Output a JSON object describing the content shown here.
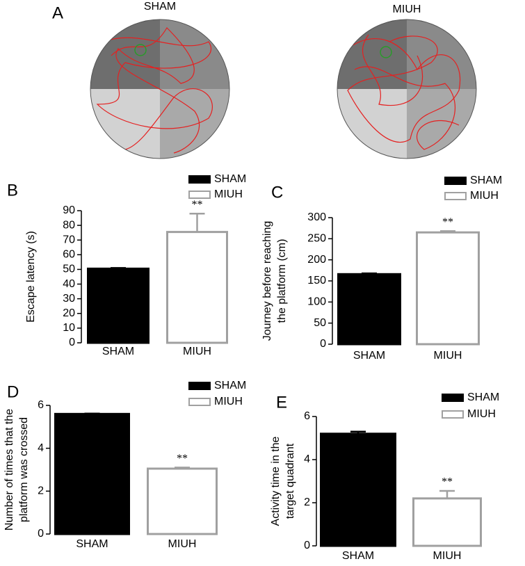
{
  "panel_a": {
    "label": "A",
    "titles": [
      "SHAM",
      "MIUH"
    ]
  },
  "chart_data": [
    {
      "type": "bar",
      "panel": "B",
      "ylabel": [
        "Escape latency (s)"
      ],
      "categories": [
        "SHAM",
        "MIUH"
      ],
      "values": [
        50.5,
        75.5
      ],
      "errors": [
        0.5,
        12.5
      ],
      "colors": [
        "#000000",
        "#ffffff"
      ],
      "edge_colors": [
        "#000000",
        "#a0a0a0"
      ],
      "legend": [
        "SHAM",
        "MIUH"
      ],
      "annotation": "**",
      "ylim": [
        0,
        90
      ],
      "yticks": [
        0,
        10,
        20,
        30,
        40,
        50,
        60,
        70,
        80,
        90
      ]
    },
    {
      "type": "bar",
      "panel": "C",
      "ylabel": [
        "Journey before reaching",
        "the platform (cm)"
      ],
      "categories": [
        "SHAM",
        "MIUH"
      ],
      "values": [
        166,
        265
      ],
      "errors": [
        2,
        3
      ],
      "colors": [
        "#000000",
        "#ffffff"
      ],
      "edge_colors": [
        "#000000",
        "#a0a0a0"
      ],
      "legend": [
        "SHAM",
        "MIUH"
      ],
      "annotation": "**",
      "ylim": [
        0,
        300
      ],
      "yticks": [
        0,
        50,
        100,
        150,
        200,
        250,
        300
      ]
    },
    {
      "type": "bar",
      "panel": "D",
      "ylabel": [
        "Number of times that the",
        "platform was crossed"
      ],
      "categories": [
        "SHAM",
        "MIUH"
      ],
      "values": [
        5.6,
        3.05
      ],
      "errors": [
        0.02,
        0.05
      ],
      "colors": [
        "#000000",
        "#ffffff"
      ],
      "edge_colors": [
        "#000000",
        "#a0a0a0"
      ],
      "legend": [
        "SHAM",
        "MIUH"
      ],
      "annotation": "**",
      "ylim": [
        0,
        6
      ],
      "yticks": [
        0,
        2,
        4,
        6
      ]
    },
    {
      "type": "bar",
      "panel": "E",
      "ylabel": [
        "Activity time in the",
        "target quadrant"
      ],
      "categories": [
        "SHAM",
        "MIUH"
      ],
      "values": [
        5.2,
        2.2
      ],
      "errors": [
        0.1,
        0.35
      ],
      "colors": [
        "#000000",
        "#ffffff"
      ],
      "edge_colors": [
        "#000000",
        "#a0a0a0"
      ],
      "legend": [
        "SHAM",
        "MIUH"
      ],
      "annotation": "**",
      "ylim": [
        0,
        6
      ],
      "yticks": [
        0,
        2,
        4,
        6
      ]
    }
  ]
}
